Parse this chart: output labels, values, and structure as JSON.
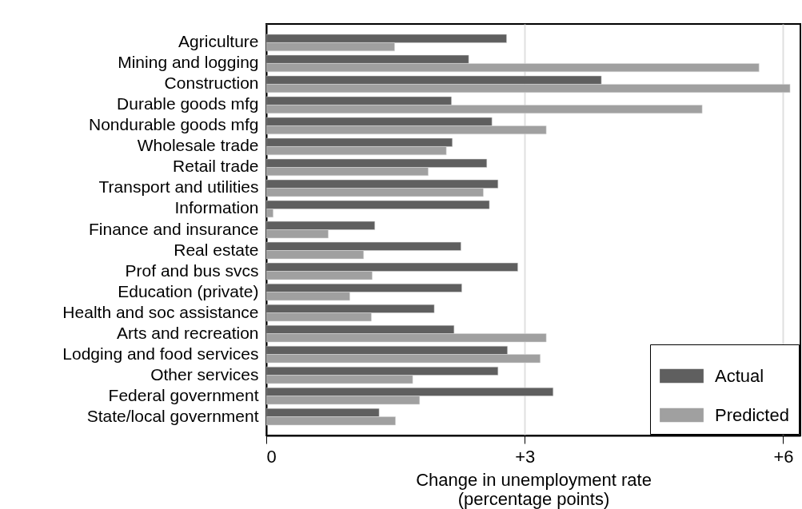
{
  "chart_data": {
    "type": "bar",
    "orientation": "horizontal",
    "xlabel": "Change in unemployment rate\n(percentage points)",
    "categories": [
      "Agriculture",
      "Mining and logging",
      "Construction",
      "Durable goods mfg",
      "Nondurable goods mfg",
      "Wholesale trade",
      "Retail trade",
      "Transport and utilities",
      "Information",
      "Finance and insurance",
      "Real estate",
      "Prof and bus svcs",
      "Education (private)",
      "Health and soc assistance",
      "Arts and recreation",
      "Lodging and food services",
      "Other services",
      "Federal government",
      "State/local government"
    ],
    "series": [
      {
        "name": "Actual",
        "color": "#5f5f5f",
        "values": [
          2.79,
          2.35,
          3.89,
          2.15,
          2.62,
          2.16,
          2.56,
          2.69,
          2.59,
          1.26,
          2.26,
          2.92,
          2.27,
          1.95,
          2.18,
          2.8,
          2.69,
          3.33,
          1.31
        ]
      },
      {
        "name": "Predicted",
        "color": "#a0a0a0",
        "values": [
          1.49,
          5.72,
          6.08,
          5.06,
          3.25,
          2.09,
          1.88,
          2.52,
          0.08,
          0.72,
          1.13,
          1.23,
          0.97,
          1.22,
          3.25,
          3.18,
          1.7,
          1.78,
          1.5
        ]
      }
    ],
    "xlim": [
      0,
      6.2
    ],
    "xticks": [
      0,
      {
        "value": 3,
        "label": "+3"
      },
      {
        "value": 6,
        "label": "+6"
      }
    ],
    "grid": "x",
    "legend": "bottom right"
  }
}
